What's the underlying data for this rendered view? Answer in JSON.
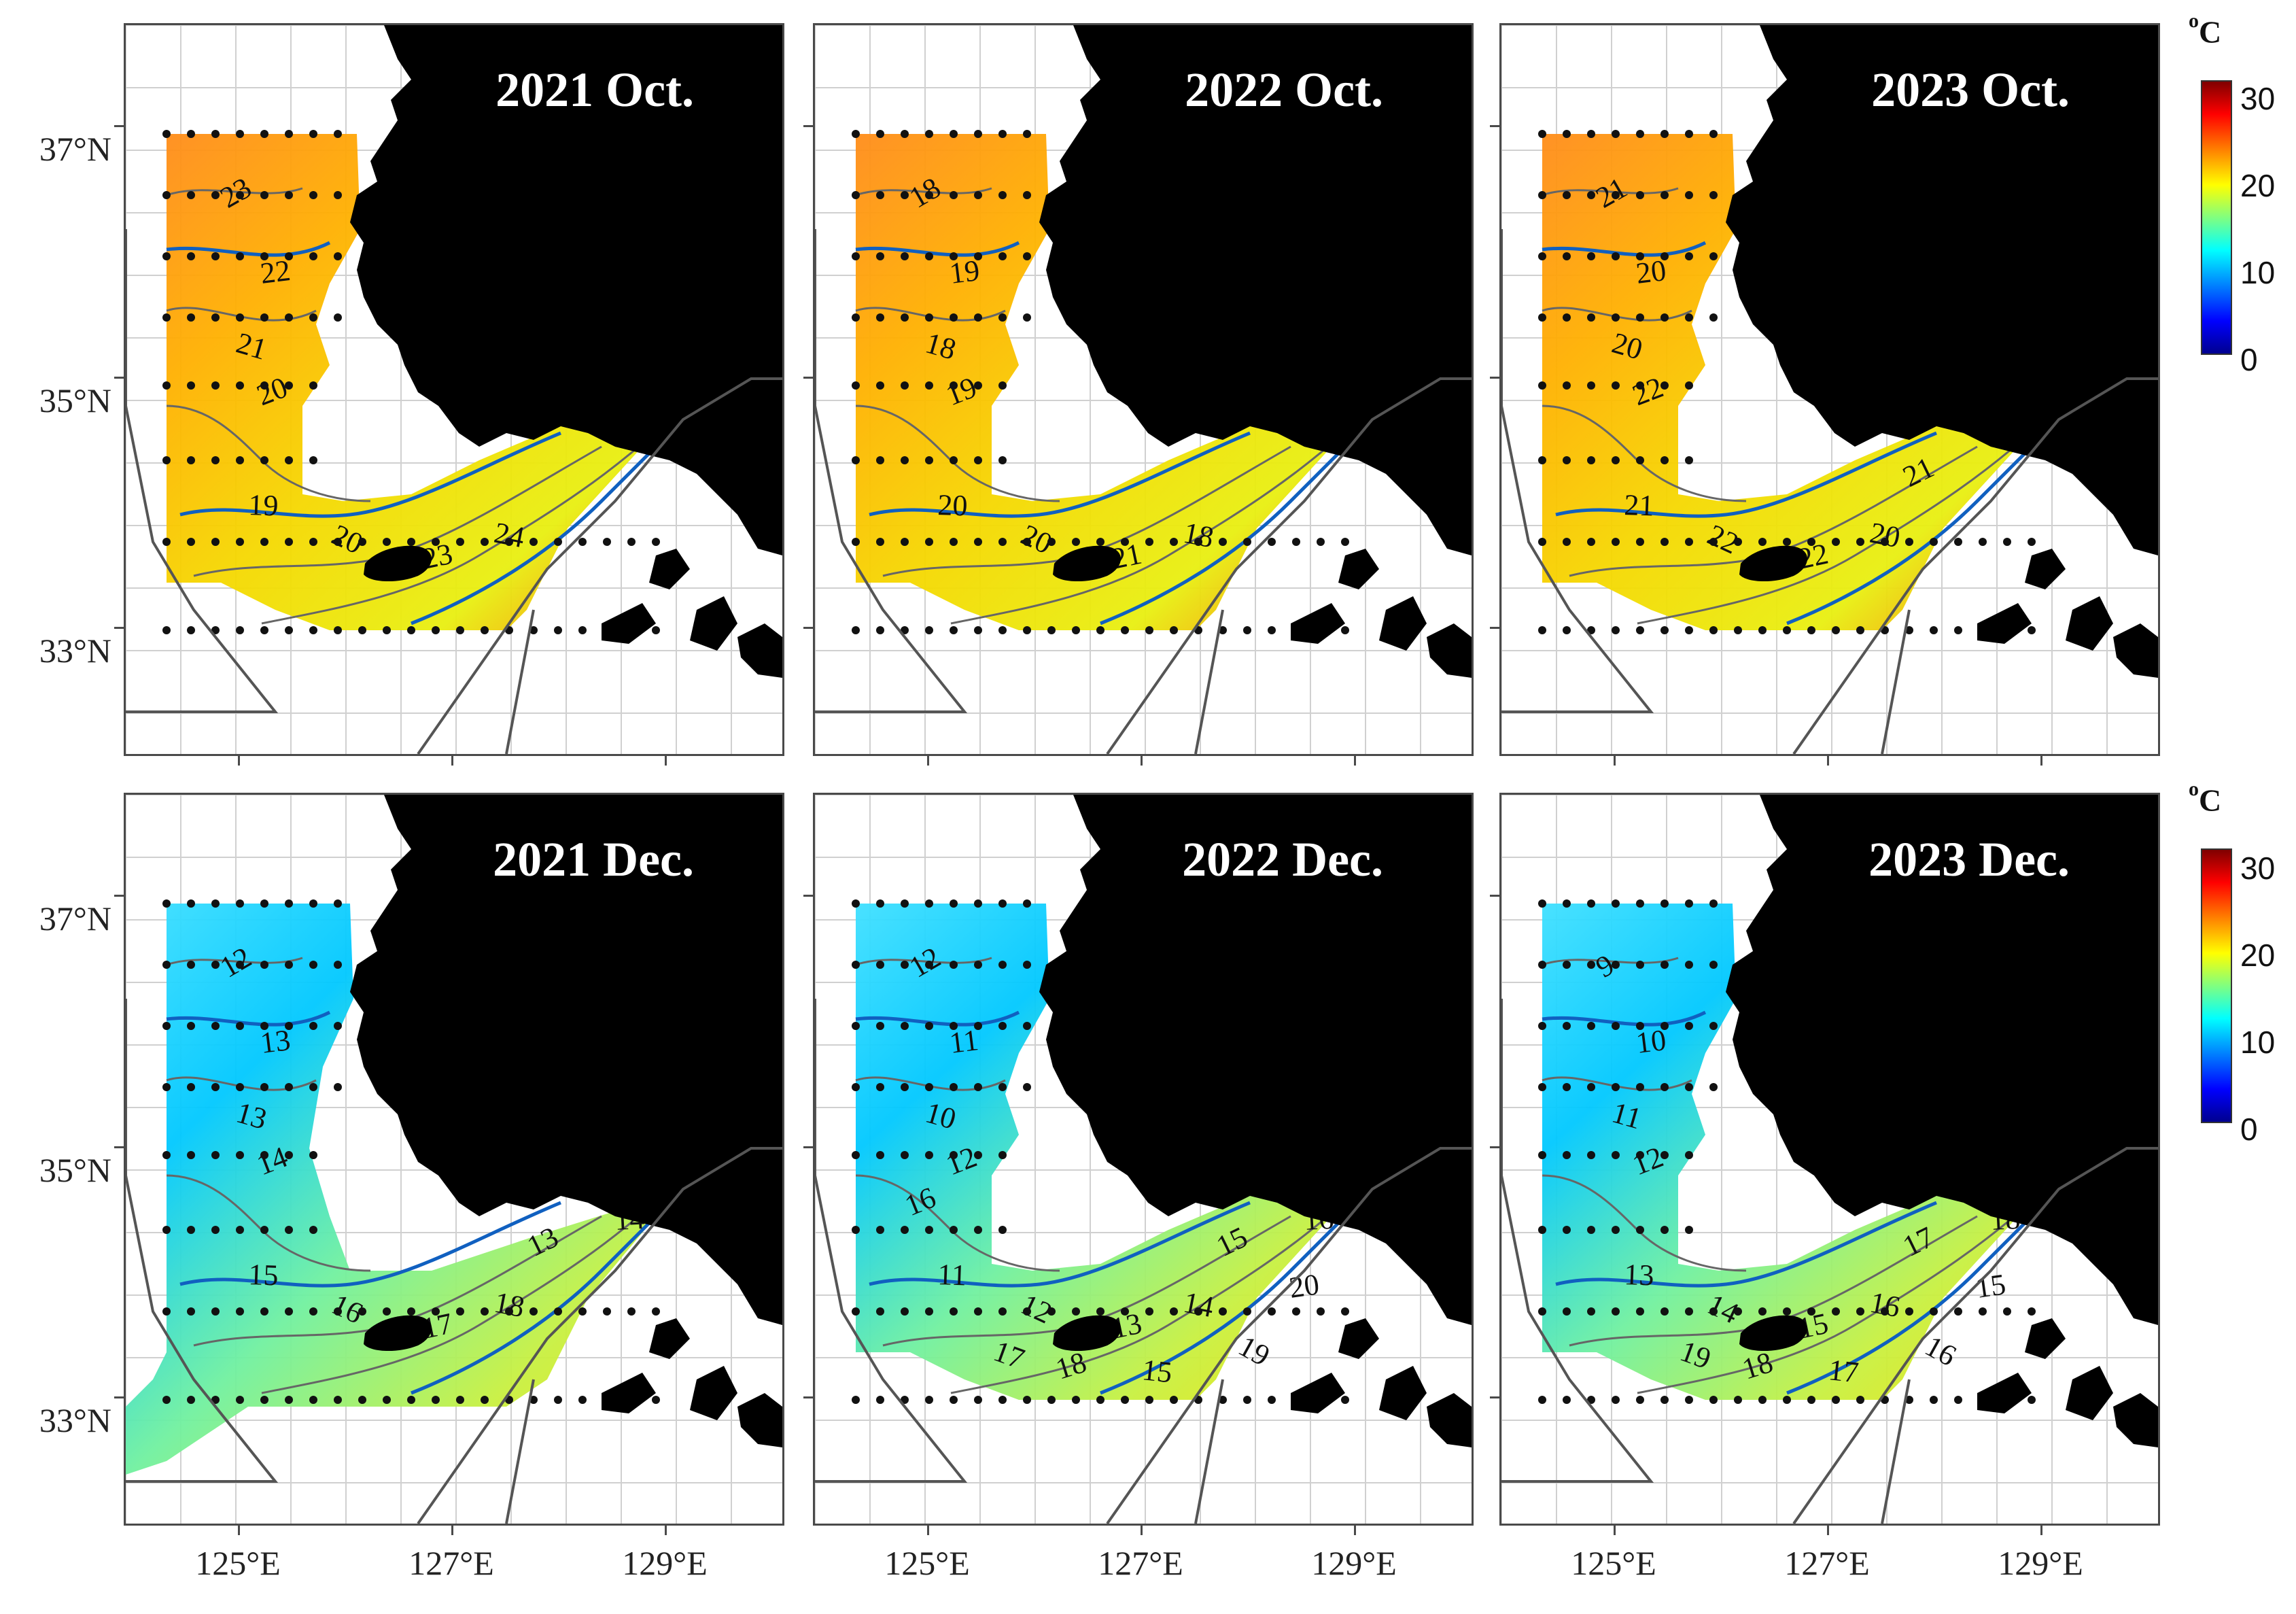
{
  "figure": {
    "panels": [
      {
        "title": "2021 Oct.",
        "month": "oct",
        "contours": [
          "23",
          "22",
          "21",
          "20",
          "19",
          "20",
          "23",
          "24"
        ]
      },
      {
        "title": "2022 Oct.",
        "month": "oct",
        "contours": [
          "18",
          "19",
          "18",
          "19",
          "20",
          "20",
          "21",
          "18"
        ]
      },
      {
        "title": "2023 Oct.",
        "month": "oct",
        "contours": [
          "21",
          "20",
          "20",
          "22",
          "21",
          "22",
          "22",
          "20",
          "21"
        ]
      },
      {
        "title": "2021 Dec.",
        "month": "dec",
        "contours": [
          "12",
          "13",
          "13",
          "14",
          "15",
          "16",
          "17",
          "18",
          "13",
          "14"
        ]
      },
      {
        "title": "2022 Dec.",
        "month": "dec",
        "contours": [
          "12",
          "11",
          "10",
          "12",
          "11",
          "12",
          "13",
          "14",
          "15",
          "16",
          "17",
          "18",
          "15",
          "19",
          "20",
          "17",
          "16"
        ]
      },
      {
        "title": "2023 Dec.",
        "month": "dec",
        "contours": [
          "9",
          "10",
          "11",
          "12",
          "13",
          "14",
          "15",
          "16",
          "17",
          "18",
          "19",
          "18",
          "17",
          "16",
          "15"
        ]
      }
    ],
    "axes": {
      "lat_labels": [
        "37°N",
        "35°N",
        "33°N"
      ],
      "lon_labels": [
        "125°E",
        "127°E",
        "129°E"
      ]
    },
    "colorbars": [
      {
        "unit_sup": "o",
        "unit": "C",
        "ticks": [
          "30",
          "20",
          "10",
          "0"
        ],
        "min": 0,
        "max": 32
      },
      {
        "unit_sup": "o",
        "unit": "C",
        "ticks": [
          "30",
          "20",
          "10",
          "0"
        ],
        "min": 0,
        "max": 32
      }
    ],
    "palettes": {
      "oct": [
        "#ff8c1a",
        "#ffb000",
        "#f5d800",
        "#e8ef10",
        "#ff6a00"
      ],
      "dec": [
        "#40e0ff",
        "#00c8ff",
        "#70f0a0",
        "#c8f040",
        "#f5e000"
      ],
      "land": "#000000",
      "grid": "#d0d0d0",
      "eez_line": "#555555",
      "contour_line": "#666666",
      "contour_bold": "#1060c0",
      "station": "#111111"
    }
  }
}
